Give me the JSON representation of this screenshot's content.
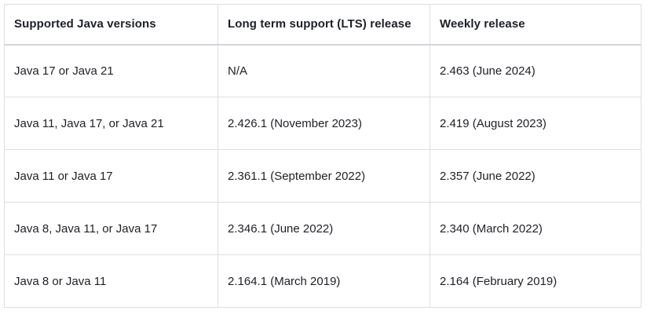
{
  "table": {
    "headers": [
      "Supported Java versions",
      "Long term support (LTS) release",
      "Weekly release"
    ],
    "rows": [
      [
        "Java 17 or Java 21",
        "N/A",
        "2.463 (June 2024)"
      ],
      [
        "Java 11, Java 17, or Java 21",
        "2.426.1 (November 2023)",
        "2.419 (August 2023)"
      ],
      [
        "Java 11 or Java 17",
        "2.361.1 (September 2022)",
        "2.357 (June 2022)"
      ],
      [
        "Java 8, Java 11, or Java 17",
        "2.346.1 (June 2022)",
        "2.340 (March 2022)"
      ],
      [
        "Java 8 or Java 11",
        "2.164.1 (March 2019)",
        "2.164 (February 2019)"
      ]
    ],
    "colors": {
      "border": "#dcdee3",
      "header_border": "#d2d5da",
      "text": "#1d2026",
      "background": "#ffffff"
    }
  }
}
